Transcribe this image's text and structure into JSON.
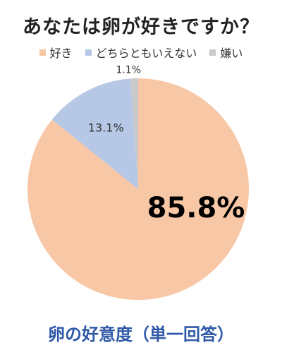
{
  "chart_data": {
    "type": "pie",
    "title": "あなたは卵が好きですか？",
    "caption": "卵の好意度（単一回答）",
    "slices": [
      {
        "label": "好き",
        "value": 85.8,
        "display": "85.8%",
        "color": "#f7c7a6"
      },
      {
        "label": "どちらともいえない",
        "value": 13.1,
        "display": "13.1%",
        "color": "#b7c7e6"
      },
      {
        "label": "嫌い",
        "value": 1.1,
        "display": "1.1%",
        "color": "#c9c9c9"
      }
    ],
    "legend_position": "top"
  }
}
